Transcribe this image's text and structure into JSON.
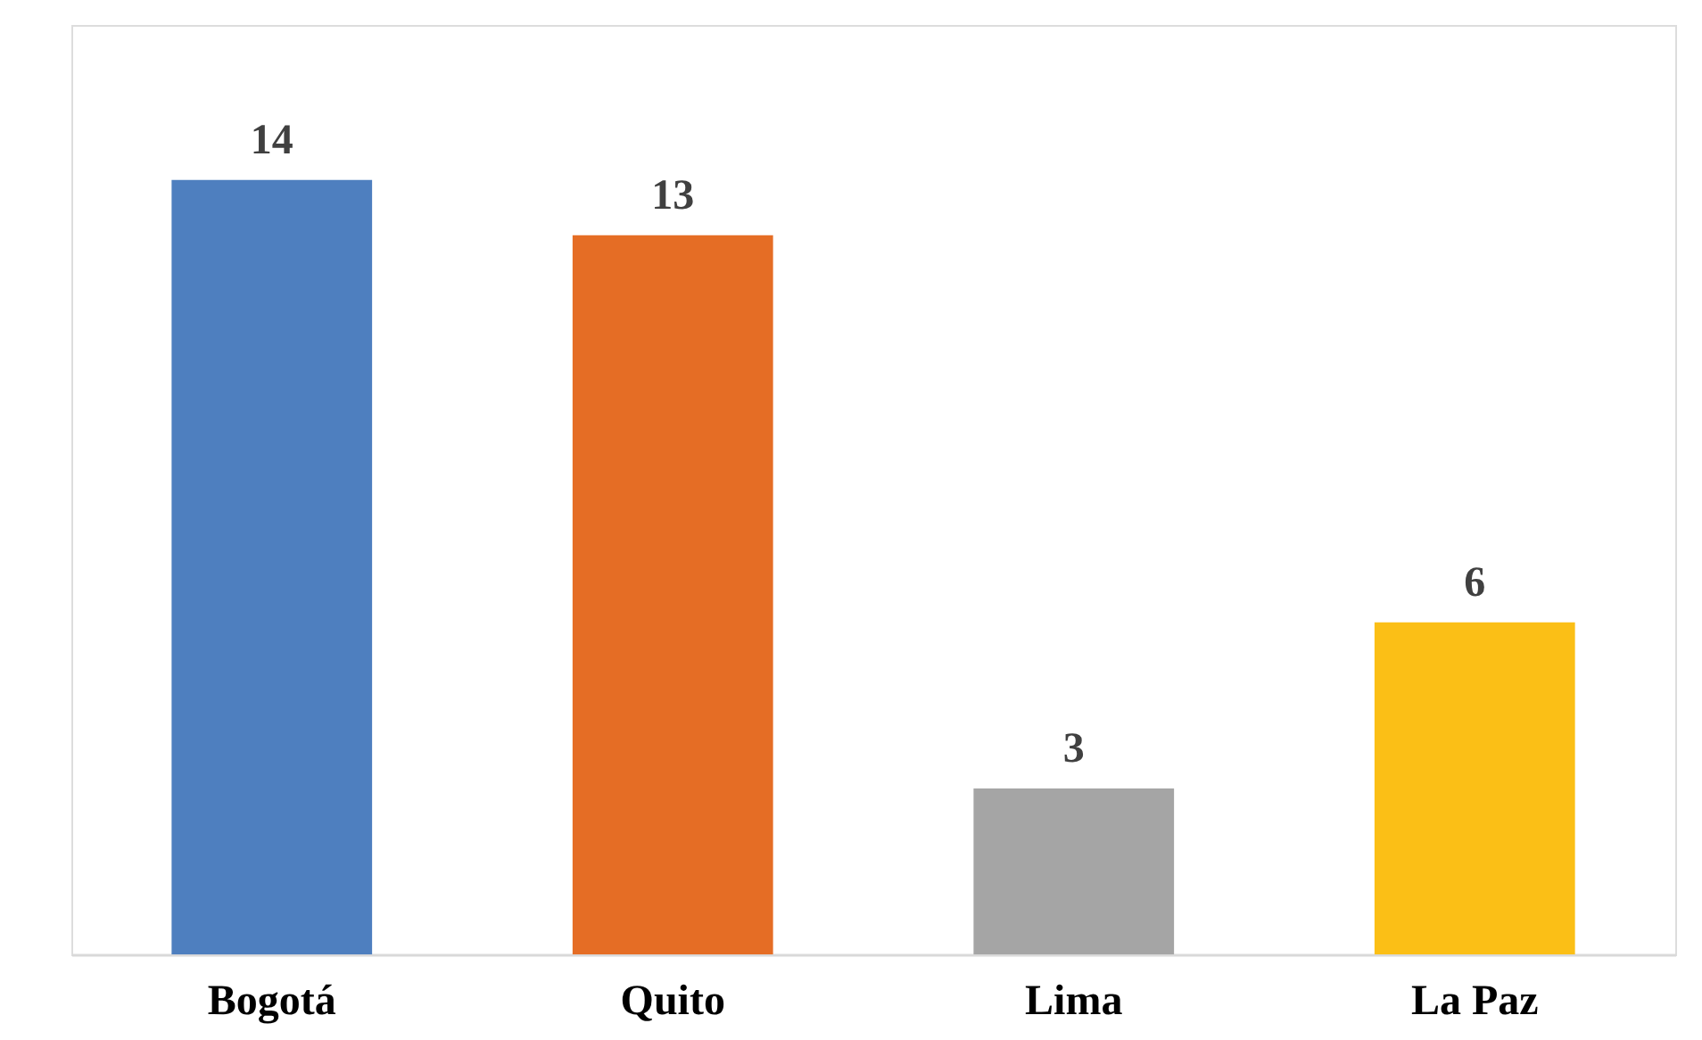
{
  "chart_data": {
    "type": "bar",
    "categories": [
      "Bogotá",
      "Quito",
      "Lima",
      "La Paz"
    ],
    "values": [
      14,
      13,
      3,
      6
    ],
    "colors": [
      "#4e7fbf",
      "#e56d25",
      "#a5a5a5",
      "#fbbf16"
    ],
    "data_labels": true,
    "grid": false
  }
}
